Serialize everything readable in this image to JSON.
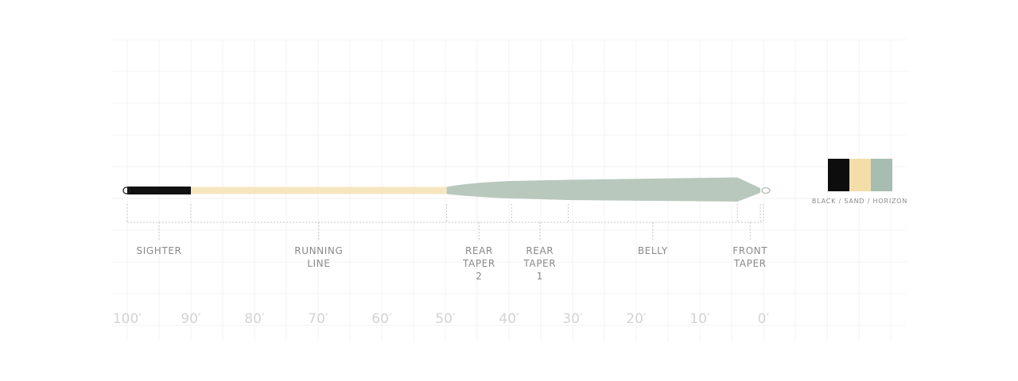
{
  "diagram": {
    "scale": {
      "unit": "ft",
      "ticks": [
        {
          "value": 100,
          "label": "100′"
        },
        {
          "value": 90,
          "label": "90′"
        },
        {
          "value": 80,
          "label": "80′"
        },
        {
          "value": 70,
          "label": "70′"
        },
        {
          "value": 60,
          "label": "60′"
        },
        {
          "value": 50,
          "label": "50′"
        },
        {
          "value": 40,
          "label": "40′"
        },
        {
          "value": 30,
          "label": "30′"
        },
        {
          "value": 20,
          "label": "20′"
        },
        {
          "value": 10,
          "label": "10′"
        },
        {
          "value": 0,
          "label": "0′"
        }
      ]
    },
    "segments": [
      {
        "name": "sighter",
        "label_lines": [
          "SIGHTER"
        ],
        "from_ft": 100,
        "to_ft": 90,
        "color": "#111111"
      },
      {
        "name": "running-line",
        "label_lines": [
          "RUNNING",
          "LINE"
        ],
        "from_ft": 90,
        "to_ft": 49.8,
        "color": "#f6e6c0"
      },
      {
        "name": "rear-taper-2",
        "label_lines": [
          "REAR",
          "TAPER",
          "2"
        ],
        "from_ft": 49.8,
        "to_ft": 39.6,
        "color": "#b9c8bd"
      },
      {
        "name": "rear-taper-1",
        "label_lines": [
          "REAR",
          "TAPER",
          "1"
        ],
        "from_ft": 39.6,
        "to_ft": 30.7,
        "color": "#b9c8bd"
      },
      {
        "name": "belly",
        "label_lines": [
          "BELLY"
        ],
        "from_ft": 30.7,
        "to_ft": 4.1,
        "color": "#b9c8bd"
      },
      {
        "name": "front-taper",
        "label_lines": [
          "FRONT",
          "TAPER"
        ],
        "from_ft": 4.1,
        "to_ft": 0,
        "color": "#b9c8bd"
      }
    ]
  },
  "colorway": {
    "caption": "BLACK / SAND / HORIZON",
    "swatches": [
      {
        "name": "black",
        "color": "#0d0d0d"
      },
      {
        "name": "sand",
        "color": "#f3deaa"
      },
      {
        "name": "horizon",
        "color": "#a7bdb2"
      }
    ]
  }
}
